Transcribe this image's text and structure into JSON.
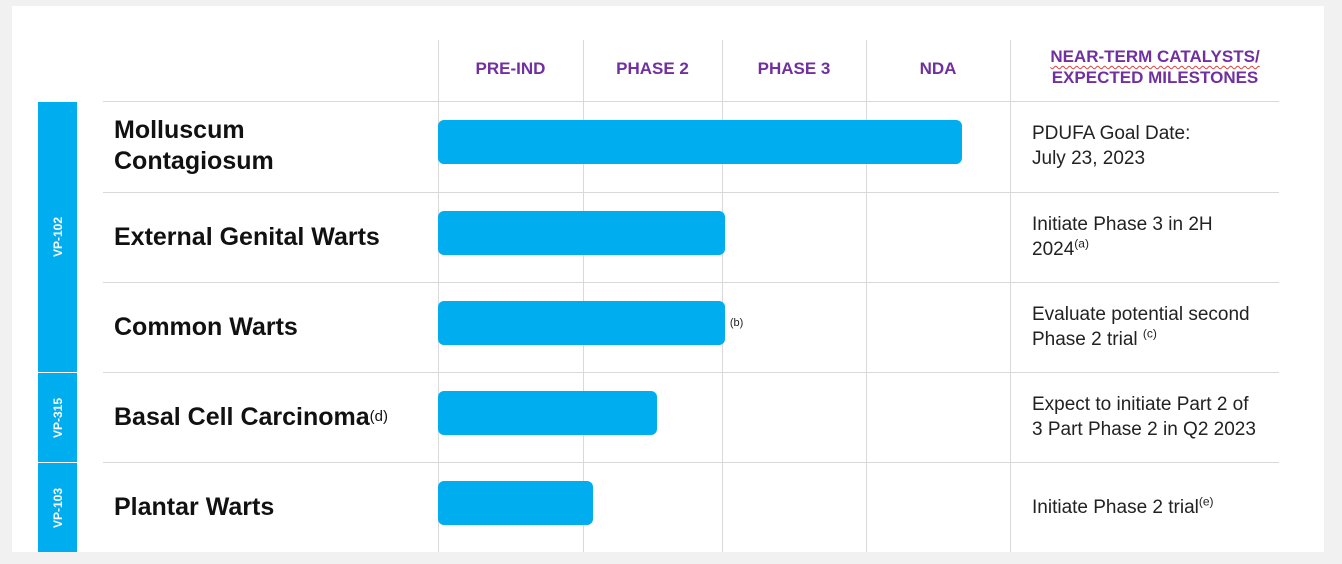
{
  "colors": {
    "bar": "#00aeef",
    "header_text": "#7030a0",
    "grid": "#d9d9d9"
  },
  "chart_data": {
    "type": "bar",
    "orientation": "horizontal",
    "stages": [
      "PRE-IND",
      "PHASE 2",
      "PHASE 3",
      "NDA"
    ],
    "catalysts_header": [
      "NEAR-TERM CATALYSTS/",
      "EXPECTED MILESTONES"
    ],
    "programs": [
      {
        "name": "VP-102",
        "rows": [
          0,
          1,
          2
        ]
      },
      {
        "name": "VP-315",
        "rows": [
          3
        ]
      },
      {
        "name": "VP-103",
        "rows": [
          4
        ]
      }
    ],
    "rows": [
      {
        "indication": "Molluscum Contagiosum",
        "sup": "",
        "progress": 3.67,
        "bar_note": "",
        "milestone": [
          "PDUFA Goal Date:",
          "July 23, 2023"
        ],
        "milestone_sup": ""
      },
      {
        "indication": "External Genital Warts",
        "sup": "",
        "progress": 2.02,
        "bar_note": "",
        "milestone": [
          "Initiate Phase 3 in 2H",
          "2024"
        ],
        "milestone_sup": "(a)"
      },
      {
        "indication": "Common Warts",
        "sup": "",
        "progress": 2.02,
        "bar_note": "(b)",
        "milestone": [
          "Evaluate potential second",
          "Phase 2 trial "
        ],
        "milestone_sup": "(c)"
      },
      {
        "indication": "Basal Cell Carcinoma",
        "sup": "(d)",
        "progress": 1.53,
        "bar_note": "",
        "milestone": [
          "Expect to initiate Part 2 of",
          "3 Part Phase 2 in Q2 2023"
        ],
        "milestone_sup": ""
      },
      {
        "indication": "Plantar Warts",
        "sup": "",
        "progress": 1.07,
        "bar_note": "",
        "milestone": [
          "Initiate Phase 2 trial"
        ],
        "milestone_sup": "(e)"
      }
    ]
  }
}
